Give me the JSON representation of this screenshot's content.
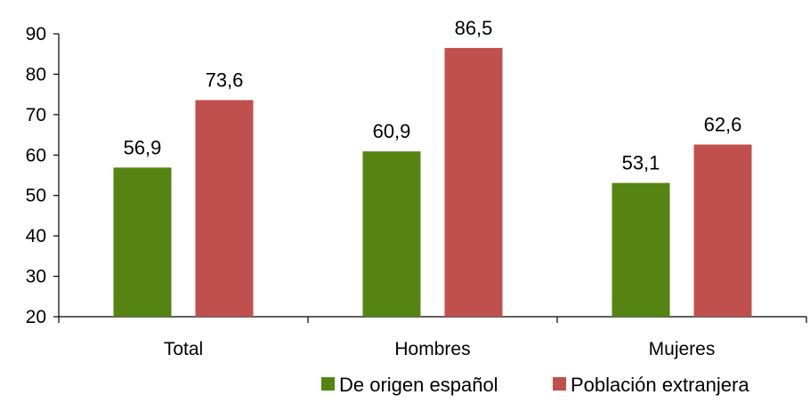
{
  "chart_data": {
    "type": "bar",
    "categories": [
      "Total",
      "Hombres",
      "Mujeres"
    ],
    "series": [
      {
        "name": "De origen español",
        "values": [
          56.9,
          60.9,
          53.1
        ],
        "labels": [
          "56,9",
          "60,9",
          "53,1"
        ],
        "color": "#568412"
      },
      {
        "name": "Población extranjera",
        "values": [
          73.6,
          86.5,
          62.6
        ],
        "labels": [
          "73,6",
          "86,5",
          "62,6"
        ],
        "color": "#C0504D"
      }
    ],
    "ylim": [
      20,
      90
    ],
    "yticks": [
      20,
      30,
      40,
      50,
      60,
      70,
      80,
      90
    ],
    "grid": false,
    "legend_position": "bottom-right",
    "title": "",
    "xlabel": "",
    "ylabel": ""
  }
}
